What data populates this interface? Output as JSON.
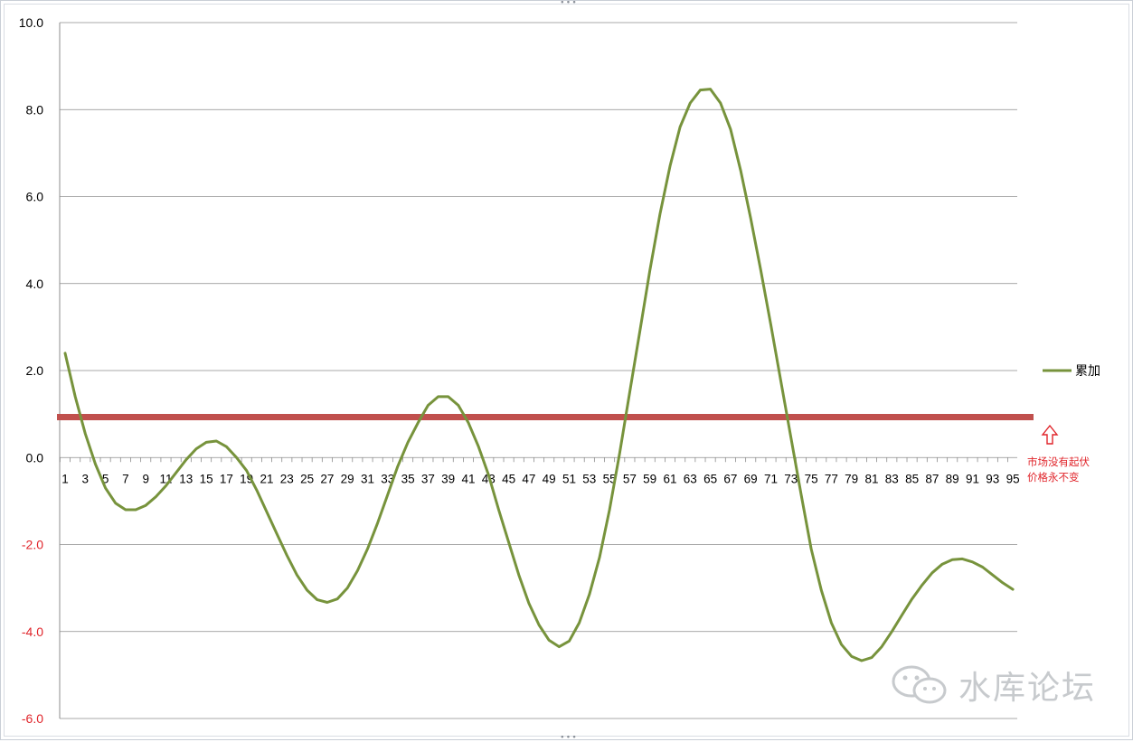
{
  "chart_data": {
    "type": "line",
    "ylim": [
      -6,
      10
    ],
    "y_ticks": [
      -6,
      -4,
      -2,
      0,
      2,
      4,
      6,
      8,
      10
    ],
    "y_tick_labels": [
      "-6.0",
      "-4.0",
      "-2.0",
      "0.0",
      "2.0",
      "4.0",
      "6.0",
      "8.0",
      "10.0"
    ],
    "x_tick_labels": [
      "1",
      "3",
      "5",
      "7",
      "9",
      "11",
      "13",
      "15",
      "17",
      "19",
      "21",
      "23",
      "25",
      "27",
      "29",
      "31",
      "33",
      "35",
      "37",
      "39",
      "41",
      "43",
      "45",
      "47",
      "49",
      "51",
      "53",
      "55",
      "57",
      "59",
      "61",
      "63",
      "65",
      "67",
      "69",
      "71",
      "73",
      "75",
      "77",
      "79",
      "81",
      "83",
      "85",
      "87",
      "89",
      "91",
      "93",
      "95"
    ],
    "grid": true,
    "legend_position": "right",
    "series": [
      {
        "name": "累加",
        "color": "#77933c",
        "x": [
          1,
          2,
          3,
          4,
          5,
          6,
          7,
          8,
          9,
          10,
          11,
          12,
          13,
          14,
          15,
          16,
          17,
          18,
          19,
          20,
          21,
          22,
          23,
          24,
          25,
          26,
          27,
          28,
          29,
          30,
          31,
          32,
          33,
          34,
          35,
          36,
          37,
          38,
          39,
          40,
          41,
          42,
          43,
          44,
          45,
          46,
          47,
          48,
          49,
          50,
          51,
          52,
          53,
          54,
          55,
          56,
          57,
          58,
          59,
          60,
          61,
          62,
          63,
          64,
          65,
          66,
          67,
          68,
          69,
          70,
          71,
          72,
          73,
          74,
          75,
          76,
          77,
          78,
          79,
          80,
          81,
          82,
          83,
          84,
          85,
          86,
          87,
          88,
          89,
          90,
          91,
          92,
          93,
          94,
          95
        ],
        "values": [
          2.4,
          1.4,
          0.55,
          -0.15,
          -0.7,
          -1.05,
          -1.2,
          -1.2,
          -1.1,
          -0.9,
          -0.65,
          -0.35,
          -0.05,
          0.2,
          0.35,
          0.38,
          0.25,
          0.0,
          -0.3,
          -0.75,
          -1.25,
          -1.75,
          -2.25,
          -2.7,
          -3.05,
          -3.27,
          -3.33,
          -3.25,
          -3.0,
          -2.6,
          -2.1,
          -1.5,
          -0.85,
          -0.2,
          0.35,
          0.8,
          1.2,
          1.4,
          1.4,
          1.2,
          0.8,
          0.25,
          -0.4,
          -1.2,
          -1.95,
          -2.7,
          -3.35,
          -3.85,
          -4.2,
          -4.35,
          -4.22,
          -3.8,
          -3.15,
          -2.3,
          -1.2,
          0.1,
          1.5,
          2.9,
          4.3,
          5.6,
          6.7,
          7.6,
          8.15,
          8.45,
          8.47,
          8.15,
          7.55,
          6.6,
          5.5,
          4.3,
          3.05,
          1.75,
          0.45,
          -0.85,
          -2.1,
          -3.05,
          -3.8,
          -4.3,
          -4.57,
          -4.67,
          -4.6,
          -4.35,
          -4.0,
          -3.62,
          -3.25,
          -2.93,
          -2.65,
          -2.45,
          -2.35,
          -2.33,
          -2.4,
          -2.52,
          -2.7,
          -2.88,
          -3.03
        ]
      },
      {
        "name": "",
        "color": "#c0504d",
        "constant": 0.93
      }
    ],
    "annotation": {
      "line1": "市场没有起伏",
      "line2": "价格永不变",
      "color": "#e0242a"
    },
    "watermark": "水库论坛"
  }
}
